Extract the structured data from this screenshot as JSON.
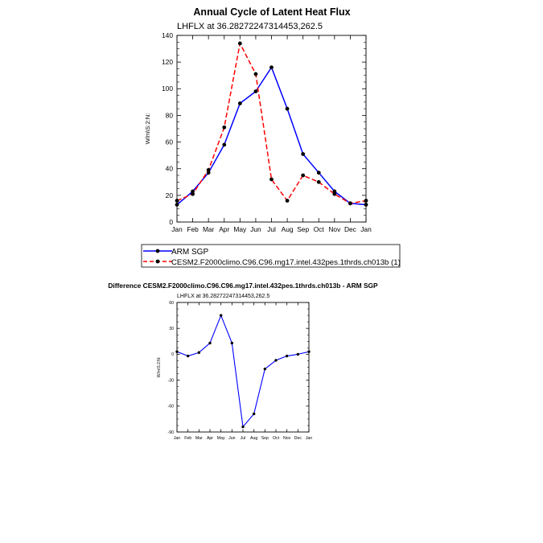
{
  "figure": {
    "title": "Annual Cycle of Latent Heat Flux",
    "difference_title": "Difference CESM2.F2000climo.C96.C96.mg17.intel.432pes.1thrds.ch013b - ARM SGP"
  },
  "chart_data": [
    {
      "type": "line",
      "subtitle": "LHFLX at 36.28272247314453,262.5",
      "ylabel": "W/m\\S:2:N:",
      "ylim": [
        0,
        140
      ],
      "yticks": [
        0,
        20,
        40,
        60,
        80,
        100,
        120,
        140
      ],
      "categories": [
        "Jan",
        "Feb",
        "Mar",
        "Apr",
        "May",
        "Jun",
        "Jul",
        "Aug",
        "Sep",
        "Oct",
        "Nov",
        "Dec",
        "Jan"
      ],
      "grid": false,
      "legend": "below",
      "series": [
        {
          "name": "ARM SGP",
          "color": "#0000ff",
          "dash": "solid",
          "values": [
            13,
            23,
            37,
            58,
            89,
            98,
            116,
            85,
            51,
            37,
            23,
            14,
            13
          ]
        },
        {
          "name": "CESM2.F2000climo.C96.C96.mg17.intel.432pes.1thrds.ch013b (1)",
          "color": "#ff0000",
          "dash": "dashed",
          "values": [
            16,
            21,
            39,
            71,
            134,
            111,
            32,
            16,
            35,
            30,
            21,
            14,
            16
          ]
        }
      ]
    },
    {
      "type": "line",
      "subtitle": "LHFLX at 36.28272247314453,262.5",
      "ylabel": "W/m\\S:2:N:",
      "ylim": [
        -90,
        60
      ],
      "yticks": [
        -90,
        -60,
        -30,
        0,
        30,
        60
      ],
      "categories": [
        "Jan",
        "Feb",
        "Mar",
        "Apr",
        "May",
        "Jun",
        "Jul",
        "Aug",
        "Sep",
        "Oct",
        "Nov",
        "Dec",
        "Jan"
      ],
      "grid": false,
      "series": [
        {
          "color": "#0000ff",
          "dash": "solid",
          "values": [
            3,
            -2,
            2,
            13,
            45,
            13,
            -84,
            -69,
            -17,
            -7,
            -2,
            0,
            3
          ]
        }
      ]
    }
  ]
}
